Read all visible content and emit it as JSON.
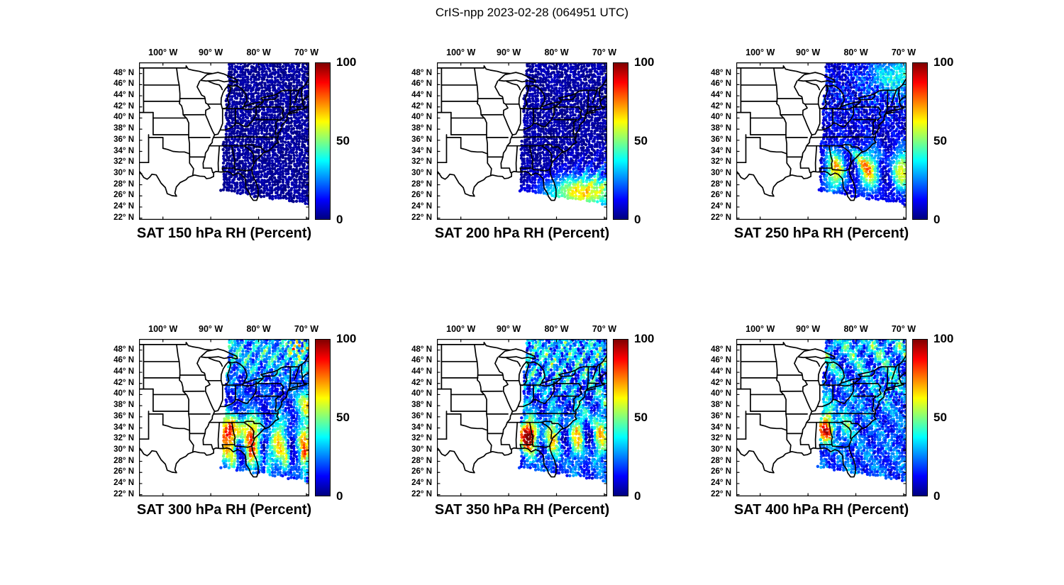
{
  "figure": {
    "title": "CrIS-npp 2023-02-28 (064951 UTC)",
    "background_color": "#ffffff",
    "map_line_color": "#000000"
  },
  "axes": {
    "lon_range": [
      -105,
      -69.4
    ],
    "lat_range": [
      21.7,
      50
    ],
    "lon_ticks": [
      {
        "label": "100° W",
        "value": -100
      },
      {
        "label": "90° W",
        "value": -90
      },
      {
        "label": "80° W",
        "value": -80
      },
      {
        "label": "70° W",
        "value": -70
      }
    ],
    "lat_ticks": [
      {
        "label": "48° N",
        "value": 48
      },
      {
        "label": "46° N",
        "value": 46
      },
      {
        "label": "44° N",
        "value": 44
      },
      {
        "label": "42° N",
        "value": 42
      },
      {
        "label": "40° N",
        "value": 40
      },
      {
        "label": "38° N",
        "value": 38
      },
      {
        "label": "36° N",
        "value": 36
      },
      {
        "label": "34° N",
        "value": 34
      },
      {
        "label": "32° N",
        "value": 32
      },
      {
        "label": "30° N",
        "value": 30
      },
      {
        "label": "28° N",
        "value": 28
      },
      {
        "label": "26° N",
        "value": 26
      },
      {
        "label": "24° N",
        "value": 24
      },
      {
        "label": "22° N",
        "value": 22
      }
    ]
  },
  "colorbar": {
    "min": 0,
    "max": 100,
    "colormap": "jet",
    "ticks": [
      {
        "label": "100",
        "value": 100
      },
      {
        "label": "50",
        "value": 50
      },
      {
        "label": "0",
        "value": 0
      }
    ],
    "colors": [
      "#000080",
      "#0000ff",
      "#00ffff",
      "#ffff00",
      "#ff0000",
      "#800000"
    ]
  },
  "panels": [
    {
      "id": "sat-150",
      "level_hPa": 150,
      "title": "SAT 150 hPa RH (Percent)"
    },
    {
      "id": "sat-200",
      "level_hPa": 200,
      "title": "SAT 200 hPa RH (Percent)"
    },
    {
      "id": "sat-250",
      "level_hPa": 250,
      "title": "SAT 250 hPa RH (Percent)"
    },
    {
      "id": "sat-300",
      "level_hPa": 300,
      "title": "SAT 300 hPa RH (Percent)"
    },
    {
      "id": "sat-350",
      "level_hPa": 350,
      "title": "SAT 350 hPa RH (Percent)"
    },
    {
      "id": "sat-400",
      "level_hPa": 400,
      "title": "SAT 400 hPa RH (Percent)"
    }
  ],
  "chart_data": {
    "type": "scatter",
    "description": "Six map panels of CrIS-npp satellite-retrieved relative humidity over the eastern United States; one satellite swath of colored footprints per panel, jet colormap 0-100 percent.",
    "satellite": "CrIS-npp",
    "date": "2023-02-28",
    "time_utc": "064951",
    "variable": "RH (Percent)",
    "levels_hPa": [
      150,
      200,
      250,
      300,
      350,
      400
    ],
    "value_range": [
      0,
      100
    ],
    "lon_range": [
      -105,
      -69.4
    ],
    "lat_range": [
      21.7,
      50
    ],
    "swath_extent": "Eastern third of CONUS, roughly east of 87W from 50N down to a slanted southern edge near 24-27N",
    "panel_summaries": [
      {
        "level_hPa": 150,
        "pattern": "Uniformly very dry; RH 0-10 (dark blue) over the entire swath."
      },
      {
        "level_hPa": 200,
        "pattern": "Mostly RH 0-10; moist band RH 30-70 (cyan to orange) along the swath's southern edge near 25-29N, 80-69W offshore of Florida."
      },
      {
        "level_hPa": 250,
        "pattern": "North mostly RH 0-20; moist band RH 40-90 with orange/red cells across 27-34N; cyan/yellow streaks 45-50N near 75-69W."
      },
      {
        "level_hPa": 300,
        "pattern": "Widespread structure: RH 40-100 band across 28-36N with reds near 33N 85W; streaky RH 10-50 in mid-latitudes; RH 20-70 streaks and isolated red cells in the far north and near the east edge around 38N."
      },
      {
        "level_hPa": 350,
        "pattern": "Moist band RH 40-100 across 29-35N with dark-red core near 32-33N, 87-85W; cyan/green streaks RH 10-60 north of 35N."
      },
      {
        "level_hPa": 400,
        "pattern": "Yellow/orange cluster RH 40-90 over 31-38N, 89-81W with small red spot near 33N 87W; speckled blue/cyan RH 10-50 elsewhere."
      }
    ]
  }
}
